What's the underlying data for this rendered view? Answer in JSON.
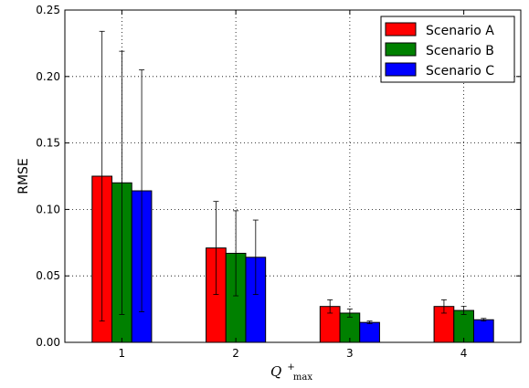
{
  "chart_data": {
    "type": "bar",
    "categories": [
      "1",
      "2",
      "3",
      "4"
    ],
    "xlabel_main": "Q",
    "xlabel_sup": "+",
    "xlabel_sub": "max",
    "ylabel": "RMSE",
    "ylim": [
      0,
      0.25
    ],
    "yticks": [
      "0.00",
      "0.05",
      "0.10",
      "0.15",
      "0.20",
      "0.25"
    ],
    "grid": true,
    "legend_position": "top-right",
    "series": [
      {
        "name": "Scenario A",
        "color": "#ff0000",
        "values": [
          0.125,
          0.071,
          0.027,
          0.027
        ],
        "err_high": [
          0.234,
          0.106,
          0.032,
          0.032
        ],
        "err_low": [
          0.016,
          0.036,
          0.022,
          0.022
        ]
      },
      {
        "name": "Scenario B",
        "color": "#008000",
        "values": [
          0.12,
          0.067,
          0.022,
          0.024
        ],
        "err_high": [
          0.219,
          0.099,
          0.025,
          0.027
        ],
        "err_low": [
          0.021,
          0.035,
          0.019,
          0.021
        ]
      },
      {
        "name": "Scenario C",
        "color": "#0000ff",
        "values": [
          0.114,
          0.064,
          0.015,
          0.017
        ],
        "err_high": [
          0.205,
          0.092,
          0.016,
          0.018
        ],
        "err_low": [
          0.023,
          0.036,
          0.014,
          0.016
        ]
      }
    ]
  }
}
